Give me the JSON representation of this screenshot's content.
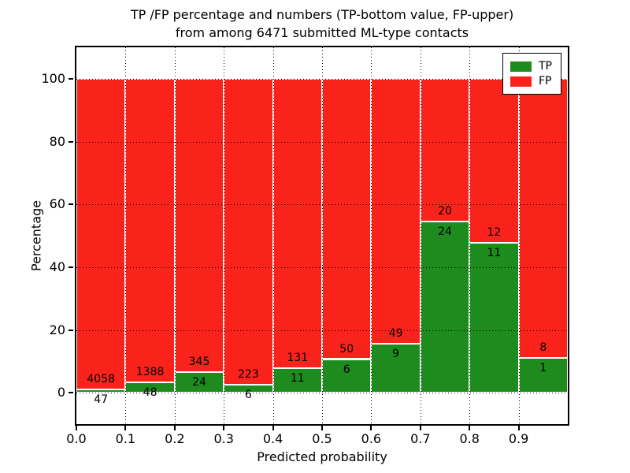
{
  "title": {
    "line1": "TP /FP percentage and numbers (TP-bottom value, FP-upper)",
    "line2": "from among 6471 submitted ML-type contacts"
  },
  "axes": {
    "xlabel": "Predicted probability",
    "ylabel": "Percentage"
  },
  "legend": {
    "items": [
      {
        "label": "TP",
        "color": "#1e8b1e"
      },
      {
        "label": "FP",
        "color": "#f9231b"
      }
    ]
  },
  "chart_data": {
    "type": "bar",
    "stacked": true,
    "title": "TP /FP percentage and numbers (TP-bottom value, FP-upper) from among 6471 submitted ML-type contacts",
    "xlabel": "Predicted probability",
    "ylabel": "Percentage",
    "xlim": [
      0.0,
      1.0
    ],
    "ylim": [
      -10,
      110
    ],
    "grid": "dotted",
    "legend_position": "upper right",
    "total_submitted": 6471,
    "bin_edges": [
      0.0,
      0.1,
      0.2,
      0.3,
      0.4,
      0.5,
      0.6,
      0.7,
      0.8,
      0.9,
      1.0
    ],
    "xticks": [
      "0.0",
      "0.1",
      "0.2",
      "0.3",
      "0.4",
      "0.5",
      "0.6",
      "0.7",
      "0.8",
      "0.9"
    ],
    "yticks": [
      0,
      20,
      40,
      60,
      80,
      100
    ],
    "series": [
      {
        "name": "TP",
        "color": "#1e8b1e",
        "counts": [
          47,
          48,
          24,
          6,
          11,
          6,
          9,
          24,
          11,
          1
        ],
        "percent": [
          1.14,
          3.34,
          6.5,
          2.62,
          7.75,
          10.71,
          15.52,
          54.55,
          47.83,
          11.11
        ]
      },
      {
        "name": "FP",
        "color": "#f9231b",
        "counts": [
          4058,
          1388,
          345,
          223,
          131,
          50,
          49,
          20,
          12,
          8
        ],
        "percent": [
          98.86,
          96.66,
          93.5,
          97.38,
          92.25,
          89.29,
          84.48,
          45.45,
          52.17,
          88.89
        ]
      }
    ]
  }
}
